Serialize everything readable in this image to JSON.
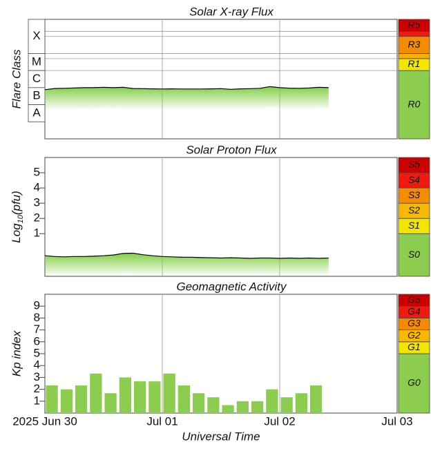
{
  "chart_data": [
    {
      "type": "line",
      "title": "Solar X-ray Flux",
      "ylabel": "Flare Class",
      "ylim": [
        -9,
        -2
      ],
      "xlim": [
        "2025-06-30",
        "2025-07-03"
      ],
      "scale_grid": true,
      "classes": [
        {
          "label": "X",
          "from": -4,
          "to": -2
        },
        {
          "label": "M",
          "from": -5,
          "to": -4
        },
        {
          "label": "C",
          "from": -6,
          "to": -5
        },
        {
          "label": "B",
          "from": -7,
          "to": -6
        },
        {
          "label": "A",
          "from": -8,
          "to": -7
        }
      ],
      "scale": [
        {
          "label": "R0",
          "from": -9,
          "color": "#8ccc4e"
        },
        {
          "label": "R1",
          "from": -5,
          "color": "#f2e500"
        },
        {
          "label": null,
          "from": -4.3,
          "color": "#f7b000"
        },
        {
          "label": "R3",
          "from": -4,
          "color": "#f58c00"
        },
        {
          "label": null,
          "from": -3,
          "color": "#f01a10"
        },
        {
          "label": "R5",
          "from": -2.7,
          "color": "#cc0000"
        }
      ],
      "color": "#000000",
      "fill": "#7ccc3c",
      "x": [
        "2025-06-30T00:00",
        "2025-06-30T02:00",
        "2025-06-30T04:00",
        "2025-06-30T06:00",
        "2025-06-30T08:00",
        "2025-06-30T10:00",
        "2025-06-30T12:00",
        "2025-06-30T14:00",
        "2025-06-30T16:00",
        "2025-06-30T18:00",
        "2025-06-30T20:00",
        "2025-06-30T22:00",
        "2025-07-01T00:00",
        "2025-07-01T02:00",
        "2025-07-01T04:00",
        "2025-07-01T06:00",
        "2025-07-01T08:00",
        "2025-07-01T10:00",
        "2025-07-01T12:00",
        "2025-07-01T14:00",
        "2025-07-01T16:00",
        "2025-07-01T18:00",
        "2025-07-01T20:00",
        "2025-07-01T22:00",
        "2025-07-02T00:00",
        "2025-07-02T02:00",
        "2025-07-02T04:00",
        "2025-07-02T06:00",
        "2025-07-02T08:00",
        "2025-07-02T10:00"
      ],
      "values": [
        -6.12,
        -6.05,
        -6.04,
        -6.02,
        -6.0,
        -6.0,
        -5.98,
        -6.0,
        -5.98,
        -6.05,
        -6.06,
        -6.07,
        -6.08,
        -6.07,
        -6.08,
        -6.08,
        -6.08,
        -6.07,
        -6.06,
        -6.1,
        -6.07,
        -6.06,
        -6.04,
        -5.94,
        -6.0,
        -6.03,
        -6.04,
        -6.02,
        -5.98,
        -6.0
      ]
    },
    {
      "type": "line",
      "title": "Solar Proton Flux",
      "ylabel": [
        "Log",
        "10",
        "(pfu)"
      ],
      "ylim": [
        -1.8,
        6
      ],
      "xlim": [
        "2025-06-30",
        "2025-07-03"
      ],
      "yticks": [
        1,
        2,
        3,
        4,
        5
      ],
      "scale": [
        {
          "label": "S0",
          "from": -1.8,
          "color": "#8ccc4e"
        },
        {
          "label": "S1",
          "from": 1,
          "color": "#f2e500"
        },
        {
          "label": "S2",
          "from": 2,
          "color": "#f7b800"
        },
        {
          "label": "S3",
          "from": 3,
          "color": "#f58c00"
        },
        {
          "label": "S4",
          "from": 4,
          "color": "#f01a10"
        },
        {
          "label": "S5",
          "from": 5,
          "color": "#cc0000"
        }
      ],
      "color": "#000000",
      "fill": "#7ccc3c",
      "x": [
        "2025-06-30T00:00",
        "2025-06-30T02:00",
        "2025-06-30T04:00",
        "2025-06-30T06:00",
        "2025-06-30T08:00",
        "2025-06-30T10:00",
        "2025-06-30T12:00",
        "2025-06-30T14:00",
        "2025-06-30T16:00",
        "2025-06-30T18:00",
        "2025-06-30T20:00",
        "2025-06-30T22:00",
        "2025-07-01T00:00",
        "2025-07-01T02:00",
        "2025-07-01T04:00",
        "2025-07-01T06:00",
        "2025-07-01T08:00",
        "2025-07-01T10:00",
        "2025-07-01T12:00",
        "2025-07-01T14:00",
        "2025-07-01T16:00",
        "2025-07-01T18:00",
        "2025-07-01T20:00",
        "2025-07-01T22:00",
        "2025-07-02T00:00",
        "2025-07-02T02:00",
        "2025-07-02T04:00",
        "2025-07-02T06:00",
        "2025-07-02T08:00",
        "2025-07-02T10:00"
      ],
      "values": [
        -0.45,
        -0.5,
        -0.52,
        -0.5,
        -0.5,
        -0.48,
        -0.45,
        -0.4,
        -0.3,
        -0.28,
        -0.38,
        -0.45,
        -0.5,
        -0.52,
        -0.55,
        -0.55,
        -0.57,
        -0.58,
        -0.6,
        -0.58,
        -0.6,
        -0.62,
        -0.6,
        -0.6,
        -0.62,
        -0.6,
        -0.62,
        -0.6,
        -0.62,
        -0.6
      ]
    },
    {
      "type": "bar",
      "title": "Geomagnetic Activity",
      "ylabel": "Kp index",
      "ylim": [
        0,
        10
      ],
      "xlim": [
        "2025-06-30",
        "2025-07-03"
      ],
      "yticks": [
        1,
        2,
        3,
        4,
        5,
        6,
        7,
        8,
        9
      ],
      "xlabel": "Universal Time",
      "xticks": [
        {
          "value": "2025-06-30",
          "label": "2025 Jun 30"
        },
        {
          "value": "2025-07-01",
          "label": "Jul 01"
        },
        {
          "value": "2025-07-02",
          "label": "Jul 02"
        },
        {
          "value": "2025-07-03",
          "label": "Jul 03"
        }
      ],
      "scale": [
        {
          "label": "G0",
          "from": 0,
          "color": "#8ccc4e"
        },
        {
          "label": "G1",
          "from": 5,
          "color": "#f2e500"
        },
        {
          "label": "G2",
          "from": 6,
          "color": "#f7b800"
        },
        {
          "label": "G3",
          "from": 7,
          "color": "#f58c00"
        },
        {
          "label": "G4",
          "from": 8,
          "color": "#f01a10"
        },
        {
          "label": "G5",
          "from": 9,
          "color": "#cc0000"
        }
      ],
      "color": "#8ccc4e",
      "x": [
        "2025-06-30T00:00",
        "2025-06-30T03:00",
        "2025-06-30T06:00",
        "2025-06-30T09:00",
        "2025-06-30T12:00",
        "2025-06-30T15:00",
        "2025-06-30T18:00",
        "2025-06-30T21:00",
        "2025-07-01T00:00",
        "2025-07-01T03:00",
        "2025-07-01T06:00",
        "2025-07-01T09:00",
        "2025-07-01T12:00",
        "2025-07-01T15:00",
        "2025-07-01T18:00",
        "2025-07-01T21:00",
        "2025-07-02T00:00",
        "2025-07-02T03:00",
        "2025-07-02T06:00"
      ],
      "values": [
        2.33,
        2,
        2.33,
        3.33,
        1.67,
        3,
        2.67,
        2.67,
        3.33,
        2.33,
        1.67,
        1.33,
        0.67,
        1,
        1,
        2,
        1.33,
        1.67,
        2.33
      ]
    }
  ]
}
